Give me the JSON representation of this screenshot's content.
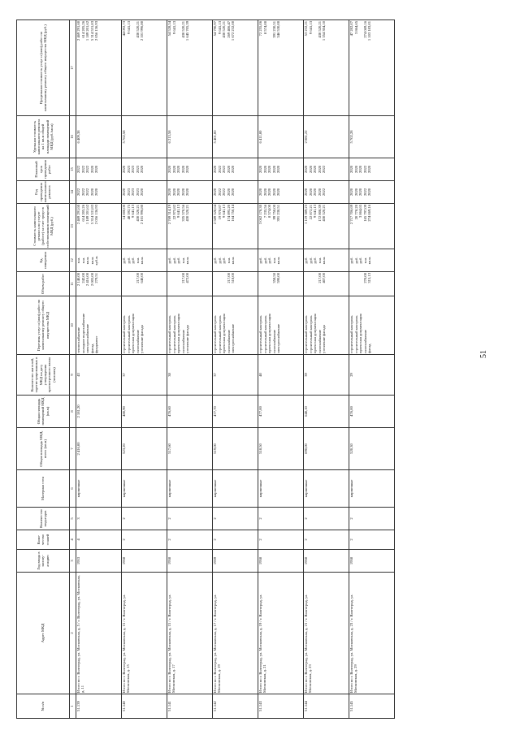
{
  "page_number": "51",
  "columns": [
    "№ п/п",
    "Адрес МКД",
    "Год ввода в эксплу-атацию",
    "Коли-чество этажей",
    "Количество подъездов",
    "Материал стен",
    "Общая площадь МКД, всего (кв.м)",
    "Общая площадь помещений МКД (кв.м)",
    "Количество жителей, зарегистрированных в МКД на дату утверждения краткосрочного плана (человек)",
    "Перечень услуг и (или) работ по капитальному ремонту общего имущества МКД",
    "Объем работ",
    "Ед. измерения",
    "Стоимость капитального ремонта по услуге (работе) за счет средств собственников помещений МКД (руб.)",
    "Год проведения капитального ремонта",
    "Плановый срок проведения работ",
    "Удельная стоимость капитального ремонта на 1 кв.м общей площади помещений МКД (руб./кв.м)",
    "Предельная стоимость услуг и (или) работ по капитальному ремонту общего имущества МКД (руб.)"
  ],
  "column_numbers": [
    "1",
    "2",
    "3",
    "4",
    "5",
    "6",
    "7",
    "8",
    "9",
    "10",
    "11",
    "12",
    "13",
    "14",
    "15",
    "16",
    "17"
  ],
  "rows": [
    {
      "num": "51.139",
      "address": "Итого по г. Волгоград, ул. Московская, д. 5 / г. Волгоград, ул. Московская, д. 11",
      "year": "1953",
      "floors": "4",
      "entrances": "3",
      "material": "кирпичные",
      "total_area": "2 416,00",
      "premises_area": "2 181,20",
      "residents": "43",
      "works": [
        "теплоснабжение",
        "холодное водоснабжение",
        "электроснабжение",
        "фасад",
        "фундамент"
      ],
      "volumes": [
        "2 140,00",
        "242,00",
        "2 416,00",
        "2 005,00",
        "279,51"
      ],
      "units": [
        "п.м.",
        "п.м.",
        "кв.м.",
        "кв.м.",
        "куб.м."
      ],
      "costs": [
        "2 469 291,60",
        "614 205,26",
        "1 189 201,62",
        "5 314 531,83",
        "2 056 136,93"
      ],
      "years": [
        "2022",
        "2022",
        "2022",
        "2020",
        "2020"
      ],
      "terms": [
        "2022",
        "2022",
        "2022",
        "2020",
        "2020"
      ],
      "specific": "6 409,38",
      "limits": [
        "2 469 291,60",
        "614 205,26",
        "1 189 201,62",
        "5 314 531,83",
        "2 056 136,93"
      ]
    },
    {
      "num": "51.140",
      "address": "Итого по г. Волгоград, ул. Московская, д. 15 / г. Волгоград, ул. Московская, д. 15",
      "year": "1958",
      "floors": "2",
      "entrances": "2",
      "material": "кирпичные",
      "total_area": "523,20",
      "premises_area": "480,90",
      "residents": "37",
      "works": [
        "строительный контроль",
        "строительный контроль",
        "проектная документация",
        "газоснабжение",
        "утепление фасада"
      ],
      "volumes": [
        "",
        "",
        "",
        "217,00",
        "640,00"
      ],
      "units": [
        "руб.",
        "руб.",
        "руб.",
        "п.м.",
        "кв.м."
      ],
      "costs": [
        "14 000,00",
        "48 592,75",
        "9 641,13",
        "430 520,21",
        "2 101 996,80"
      ],
      "years": [
        "2020",
        "2023",
        "2023",
        "2023",
        "2020"
      ],
      "terms": [
        "2020",
        "2023",
        "2023",
        "2023",
        "2020"
      ],
      "specific": "5 762,58",
      "limits": [
        "44 092,73",
        "9 641,13",
        "",
        "430 520,21",
        "2 101 996,80"
      ]
    },
    {
      "num": "51.141",
      "address": "Итого по г. Волгоград, ул. Московская, д. 15 / г. Волгоград, ул. Московская, д. 17",
      "year": "1958",
      "floors": "2",
      "entrances": "2",
      "material": "кирпичные",
      "total_area": "517,60",
      "premises_area": "476,60",
      "residents": "38",
      "works": [
        "строительный контроль",
        "строительный контроль",
        "проектная документация",
        "газоснабжение",
        "утепление фасада"
      ],
      "volumes": [
        "",
        "",
        "",
        "217,00",
        "472,00"
      ],
      "units": [
        "руб.",
        "руб.",
        "руб.",
        "п.м.",
        "кв.м."
      ],
      "costs": [
        "2 769 314,19",
        "22 975,82",
        "9 641,13",
        "335 570,56",
        "430 520,21"
      ],
      "years": [
        "2020",
        "2020",
        "2020",
        "2020",
        "2020"
      ],
      "terms": [
        "2020",
        "2020",
        "2020",
        "2020",
        "2020"
      ],
      "specific": "6 213,58",
      "limits": [
        "54 528,54",
        "9 641,13",
        "",
        "430 520,21",
        "1 645 705,39"
      ]
    },
    {
      "num": "51.142",
      "address": "Итого по г. Волгоград, ул. Московская, д. 17 / г. Волгоград, ул. Московская, д. 19",
      "year": "1959",
      "floors": "2",
      "entrances": "2",
      "material": "кирпичные",
      "total_area": "519,00",
      "premises_area": "477,70",
      "residents": "37",
      "works": [
        "строительный контроль",
        "строительный контроль",
        "проектная документация",
        "газоснабжение",
        "электроснабжение"
      ],
      "volumes": [
        "",
        "",
        "",
        "217,00",
        "518,00"
      ],
      "units": [
        "руб.",
        "руб.",
        "руб.",
        "п.м.",
        "кв.м."
      ],
      "costs": [
        "2 589 528,64",
        "19 978,87",
        "9 641,13",
        "174 895,20",
        "164 750,14"
      ],
      "years": [
        "2020",
        "2022",
        "2022",
        "2020",
        "2020"
      ],
      "terms": [
        "2020",
        "2022",
        "2022",
        "2020",
        "2020"
      ],
      "specific": "5 401,00",
      "limits": [
        "54 790,97",
        "9 641,13",
        "430 520,21",
        "269 406,47",
        "1 672 232,00"
      ]
    },
    {
      "num": "51.143",
      "address": "Итого по г. Волгоград, ул. Московская, д. 19 / г. Волгоград, ул. Московская, д. 21",
      "year": "1958",
      "floors": "2",
      "entrances": "2",
      "material": "кирпичные",
      "total_area": "518,50",
      "premises_area": "477,00",
      "residents": "40",
      "works": [
        "строительный контроль",
        "строительный контроль",
        "проектная документация",
        "газоснабжение",
        "электроснабжение"
      ],
      "volumes": [
        "",
        "",
        "",
        "358,50",
        "590,00"
      ],
      "units": [
        "руб.",
        "руб.",
        "руб.",
        "п.м.",
        "кв.м."
      ],
      "costs": [
        "3 062 178,30",
        "7 235,56",
        "8 574,00",
        "99 750,00",
        "391 230,51"
      ],
      "years": [
        "2020",
        "2020",
        "2020",
        "2020",
        "2020"
      ],
      "terms": [
        "2020",
        "2020",
        "2020",
        "2020",
        "2020"
      ],
      "specific": "6 411,00",
      "limits": [
        "72 255,06",
        "8 574,00",
        "",
        "391 230,51",
        "346 530,00"
      ]
    },
    {
      "num": "51.144",
      "address": "Итого по г. Волгоград, ул. Московская, д. 21 / г. Волгоград, ул. Московская, д. 23",
      "year": "1958",
      "floors": "2",
      "entrances": "2",
      "material": "кирпичные",
      "total_area": "690,00",
      "premises_area": "640,10",
      "residents": "39",
      "works": [
        "строительный контроль",
        "строительный контроль",
        "проектная документация",
        "газоснабжение",
        "утепление фасада"
      ],
      "volumes": [
        "",
        "",
        "",
        "217,00",
        "407,00"
      ],
      "units": [
        "руб.",
        "руб.",
        "руб.",
        "п.м.",
        "кв.м."
      ],
      "costs": [
        "1 119 389,23",
        "22 872,21",
        "9 641,13",
        "172 808,39",
        "430 520,21"
      ],
      "years": [
        "2020",
        "2020",
        "2020",
        "2020",
        "2022"
      ],
      "terms": [
        "2020",
        "2020",
        "2020",
        "2020",
        "2022"
      ],
      "specific": "2 081,22",
      "limits": [
        "53 232,21",
        "9 641,13",
        "",
        "430 520,21",
        "1 354 304,10"
      ]
    },
    {
      "num": "51.145",
      "address": "Итого по г. Волгоград, ул. Московская, д. 23 / г. Волгоград, ул. Московская, д. 29",
      "year": "1958",
      "floors": "2",
      "entrances": "2",
      "material": "кирпичные",
      "total_area": "520,30",
      "premises_area": "476,00",
      "residents": "29",
      "works": [
        "строительный контроль",
        "строительный контроль",
        "проектная документация",
        "газоснабжение",
        "фасад"
      ],
      "volumes": [
        "",
        "",
        "",
        "270,00",
        "315,13"
      ],
      "units": [
        "руб.",
        "руб.",
        "руб.",
        "п.м.",
        "кв.м."
      ],
      "costs": [
        "2 717 706,69",
        "20 778,20",
        "3 864,65",
        "165 797,09",
        "274 069,16"
      ],
      "years": [
        "2020",
        "2020",
        "2020",
        "2022",
        "2020"
      ],
      "terms": [
        "2020",
        "2020",
        "2020",
        "2022",
        "2020"
      ],
      "specific": "5 702,28",
      "limits": [
        "47 282,07",
        "3 864,65",
        "",
        "274 069,16",
        "1 103 183,01"
      ]
    }
  ]
}
